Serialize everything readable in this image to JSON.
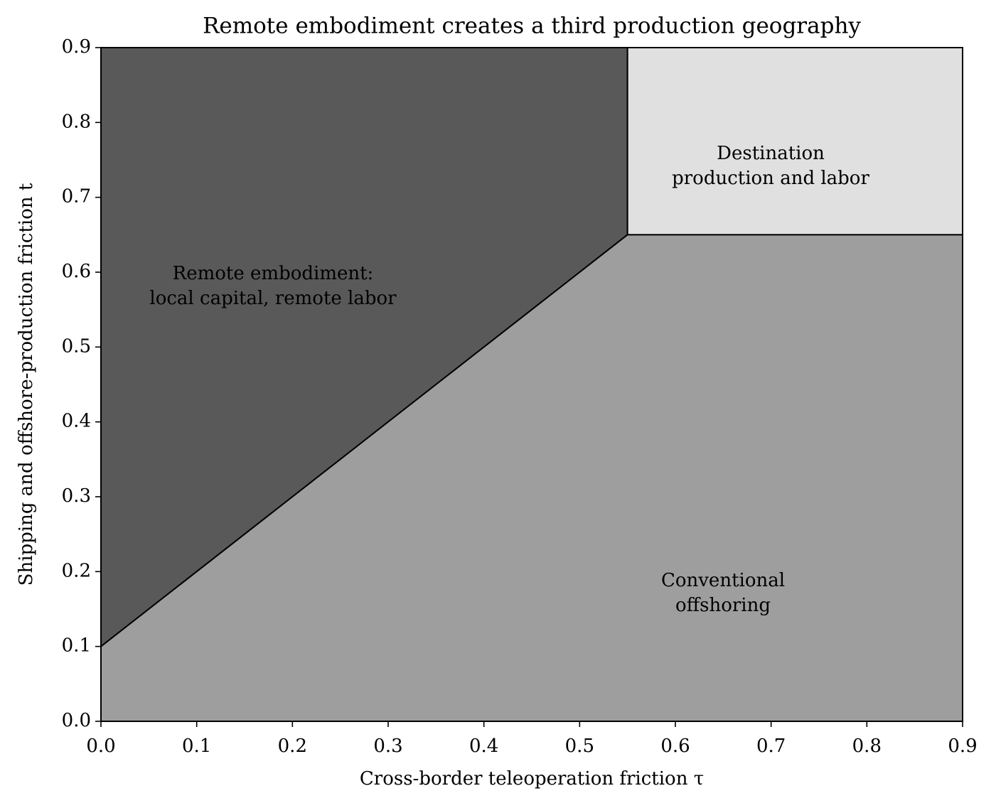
{
  "chart_data": {
    "type": "region",
    "title": "Remote embodiment creates a third production geography",
    "x_label": "Cross-border teleoperation friction τ",
    "y_label": "Shipping and offshore-production friction t",
    "xlim": [
      0,
      0.9
    ],
    "ylim": [
      0,
      0.9
    ],
    "xticks": [
      {
        "value": 0,
        "label": "0.0"
      },
      0.1,
      0.2,
      0.3,
      0.4,
      0.5,
      0.6,
      0.7,
      0.8,
      0.9
    ],
    "yticks": [
      {
        "value": 0,
        "label": "0.0"
      },
      0.1,
      0.2,
      0.3,
      0.4,
      0.5,
      0.6,
      0.7,
      0.8,
      0.9
    ],
    "regions": [
      {
        "name": [
          "Remote embodiment:",
          "local capital, remote labor"
        ],
        "color": "#595959",
        "x": [
          0,
          0,
          0.55,
          0.55
        ],
        "y": [
          0.1,
          0.9,
          0.9,
          0.65
        ]
      },
      {
        "name": [
          "Destination",
          "production and labor"
        ],
        "color": "#e0e0e0",
        "x": [
          0.55,
          0.55,
          0.9,
          0.9
        ],
        "y": [
          0.65,
          0.9,
          0.9,
          0.65
        ]
      },
      {
        "name": [
          "Conventional",
          "offshoring"
        ],
        "color": "#9e9e9e",
        "x": [
          0,
          0,
          0.55,
          0.9,
          0.9
        ],
        "y": [
          0,
          0.1,
          0.65,
          0.65,
          0
        ]
      }
    ]
  }
}
